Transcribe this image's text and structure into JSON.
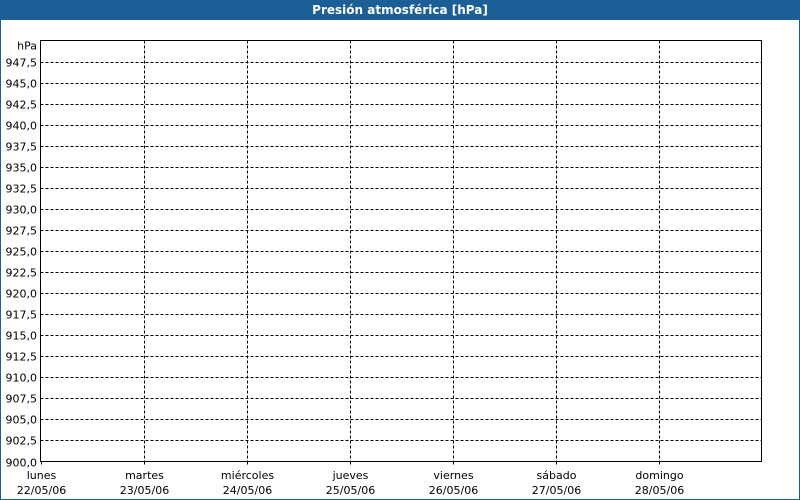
{
  "title": "Presión atmosférica [hPa]",
  "colors": {
    "titlebar": "#1c5f96",
    "grid": "#000000"
  },
  "chart_data": {
    "type": "line",
    "title": "Presión atmosférica [hPa]",
    "ylabel": "hPa",
    "ylim": [
      900,
      950
    ],
    "yticks": [
      "900,0",
      "902,5",
      "905,0",
      "907,5",
      "910,0",
      "912,5",
      "915,0",
      "917,5",
      "920,0",
      "922,5",
      "925,0",
      "927,5",
      "930,0",
      "932,5",
      "935,0",
      "937,5",
      "940,0",
      "942,5",
      "945,0",
      "947,5"
    ],
    "x_categories": [
      {
        "day": "lunes",
        "date": "22/05/06"
      },
      {
        "day": "martes",
        "date": "23/05/06"
      },
      {
        "day": "miércoles",
        "date": "24/05/06"
      },
      {
        "day": "jueves",
        "date": "25/05/06"
      },
      {
        "day": "viernes",
        "date": "26/05/06"
      },
      {
        "day": "sábado",
        "date": "27/05/06"
      },
      {
        "day": "domingo",
        "date": "28/05/06"
      }
    ],
    "grid": true,
    "series": []
  }
}
